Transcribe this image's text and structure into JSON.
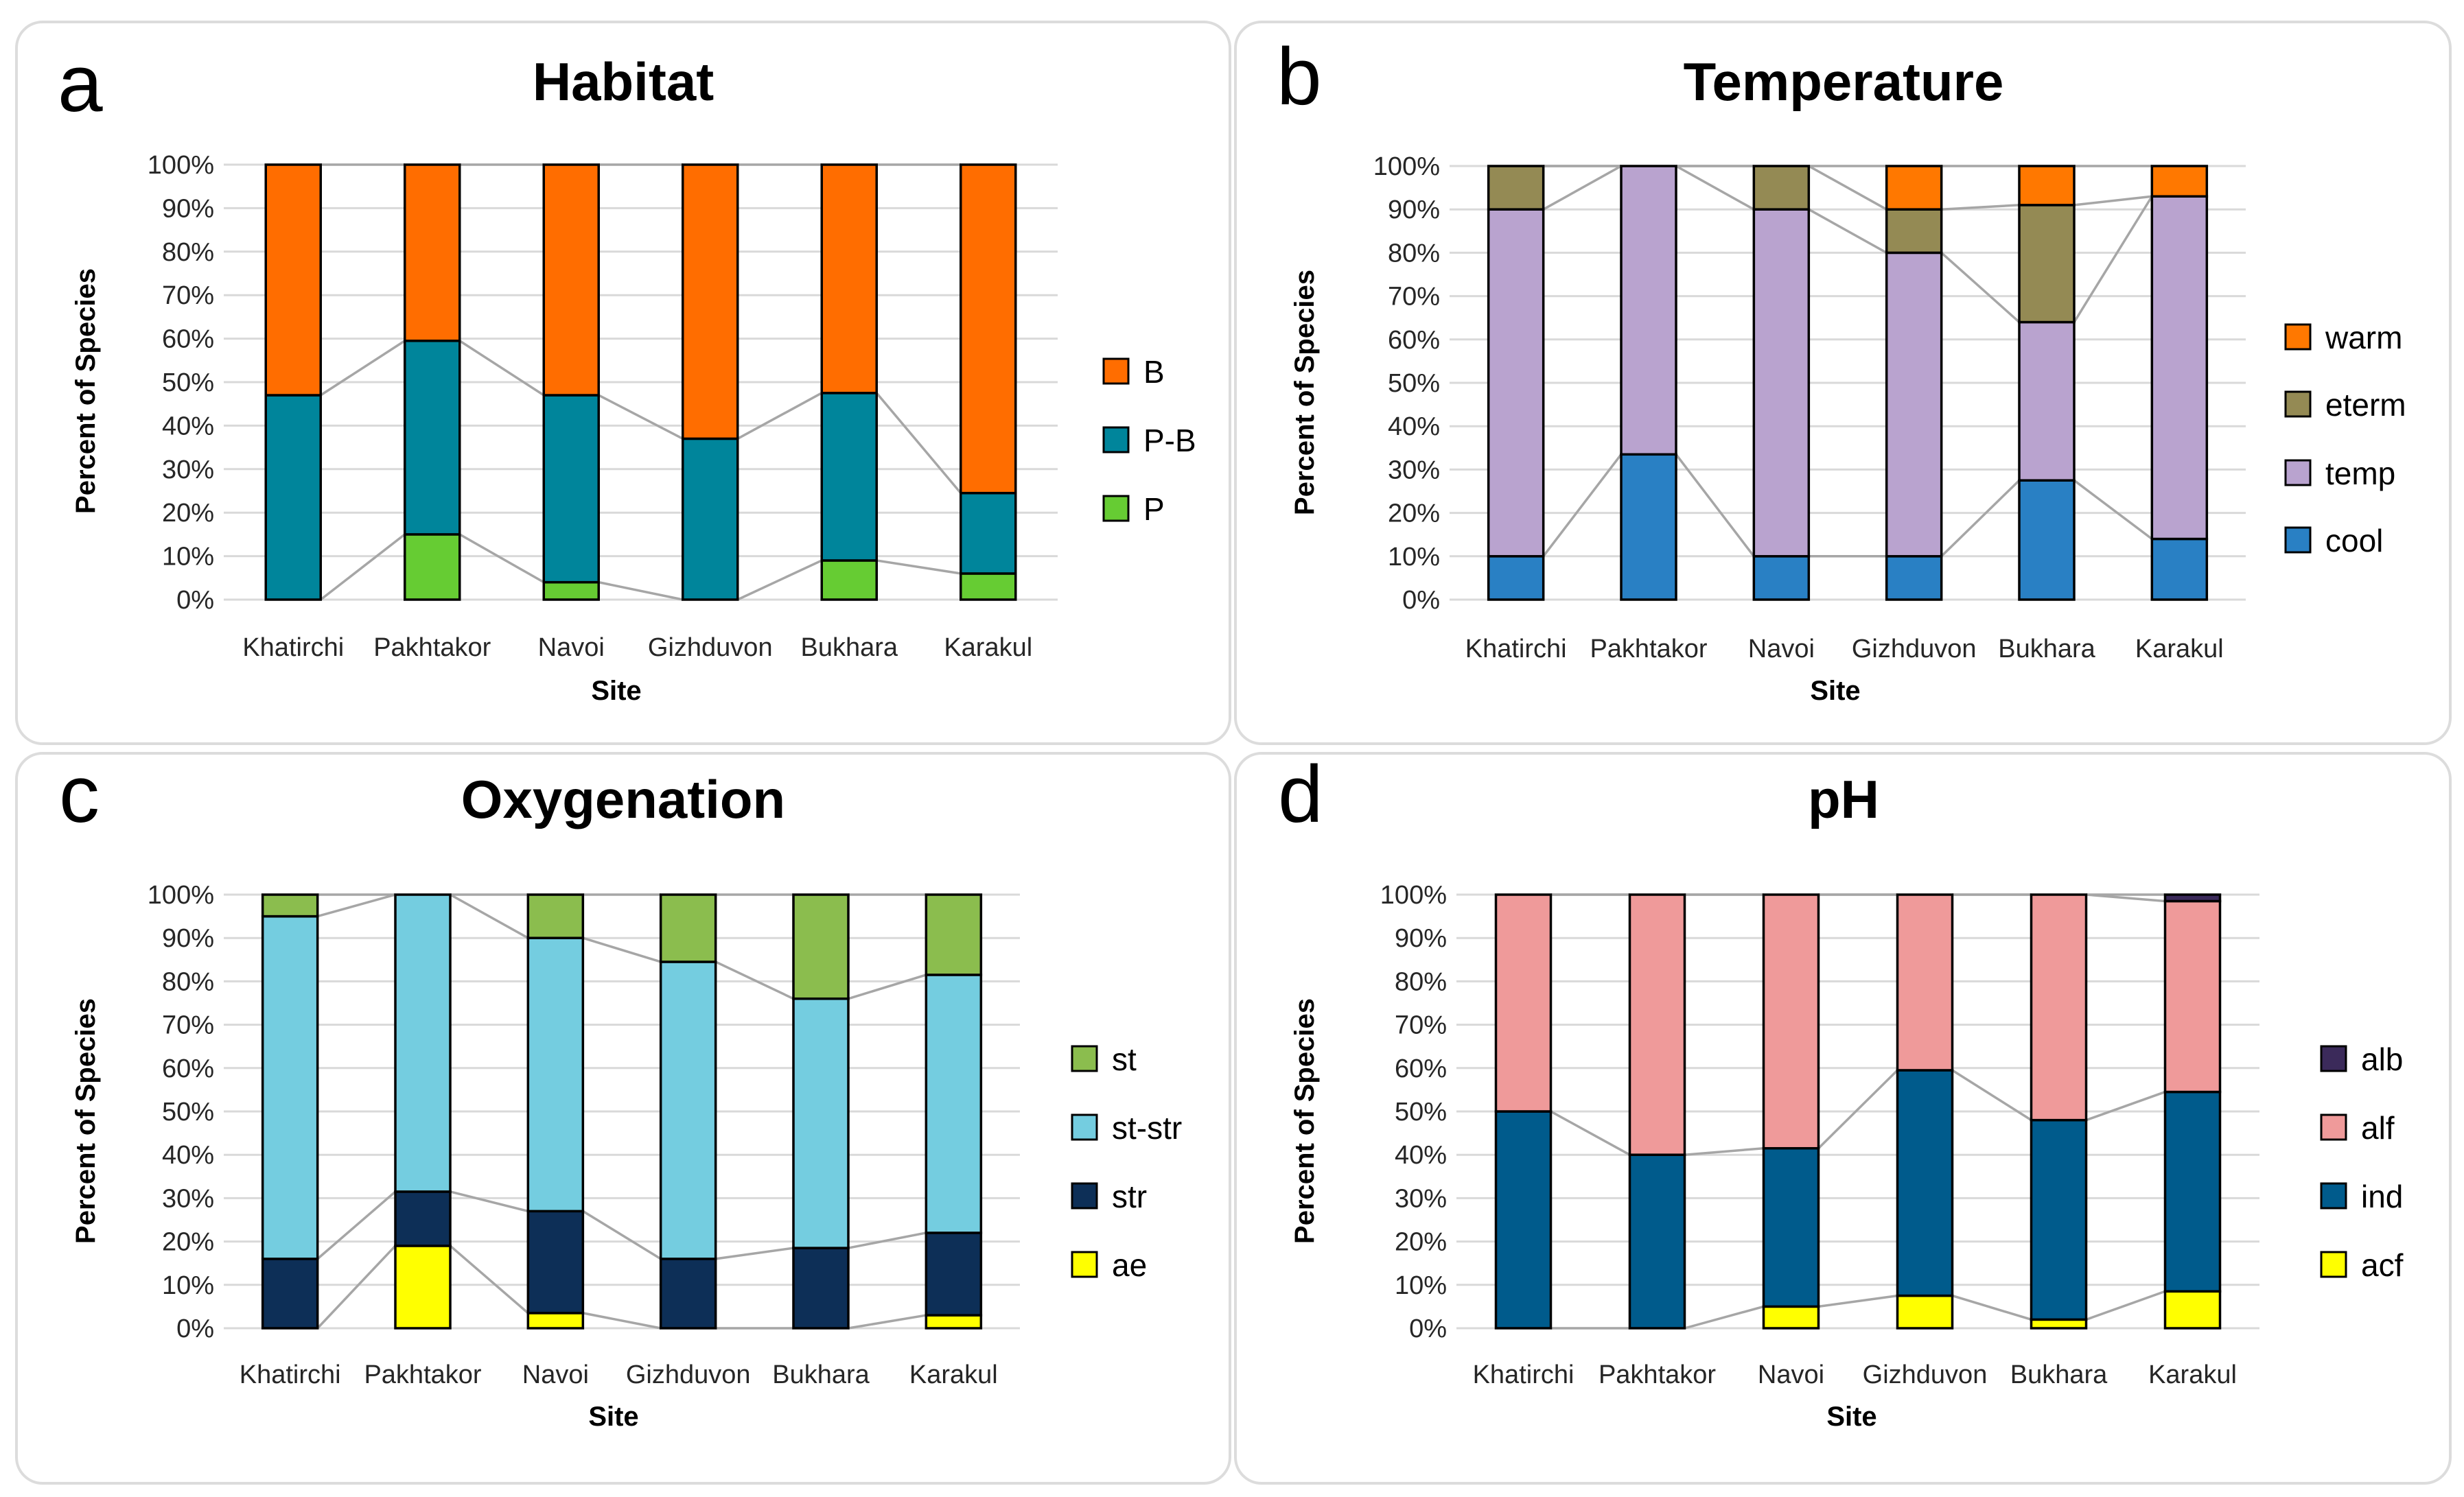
{
  "chart_data": [
    {
      "id": "a",
      "panel_label": "a",
      "type": "bar",
      "stacked": true,
      "title": "Habitat",
      "xlabel": "Site",
      "ylabel": "Percent of Species",
      "ylim": [
        0,
        100
      ],
      "yticks": [
        "0%",
        "10%",
        "20%",
        "30%",
        "40%",
        "50%",
        "60%",
        "70%",
        "80%",
        "90%",
        "100%"
      ],
      "categories": [
        "Khatirchi",
        "Pakhtakor",
        "Navoi",
        "Gizhduvon",
        "Bukhara",
        "Karakul"
      ],
      "series": [
        {
          "name": "P",
          "color": "#66cc33",
          "values": [
            0,
            15,
            4,
            0,
            9,
            6
          ]
        },
        {
          "name": "P-B",
          "color": "#00859b",
          "values": [
            47,
            44.5,
            43,
            37,
            38.5,
            18.5
          ]
        },
        {
          "name": "B",
          "color": "#ff6d00",
          "values": [
            53,
            40.5,
            53,
            63,
            52.5,
            75.5
          ]
        }
      ],
      "legend": [
        "B",
        "P-B",
        "P"
      ]
    },
    {
      "id": "b",
      "panel_label": "b",
      "type": "bar",
      "stacked": true,
      "title": "Temperature",
      "xlabel": "Site",
      "ylabel": "Percent of Species",
      "ylim": [
        0,
        100
      ],
      "yticks": [
        "0%",
        "10%",
        "20%",
        "30%",
        "40%",
        "50%",
        "60%",
        "70%",
        "80%",
        "90%",
        "100%"
      ],
      "categories": [
        "Khatirchi",
        "Pakhtakor",
        "Navoi",
        "Gizhduvon",
        "Bukhara",
        "Karakul"
      ],
      "series": [
        {
          "name": "cool",
          "color": "#2980c4",
          "values": [
            10,
            33.5,
            10,
            10,
            27.5,
            14
          ]
        },
        {
          "name": "temp",
          "color": "#b9a3cf",
          "values": [
            80,
            66.5,
            80,
            70,
            36.5,
            79
          ]
        },
        {
          "name": "eterm",
          "color": "#948a54",
          "values": [
            10,
            0,
            10,
            10,
            27,
            0
          ]
        },
        {
          "name": "warm",
          "color": "#ff7800",
          "values": [
            0,
            0,
            0,
            10,
            9,
            7
          ]
        }
      ],
      "legend": [
        "warm",
        "eterm",
        "temp",
        "cool"
      ]
    },
    {
      "id": "c",
      "panel_label": "c",
      "type": "bar",
      "stacked": true,
      "title": "Oxygenation",
      "xlabel": "Site",
      "ylabel": "Percent of Species",
      "ylim": [
        0,
        100
      ],
      "yticks": [
        "0%",
        "10%",
        "20%",
        "30%",
        "40%",
        "50%",
        "60%",
        "70%",
        "80%",
        "90%",
        "100%"
      ],
      "categories": [
        "Khatirchi",
        "Pakhtakor",
        "Navoi",
        "Gizhduvon",
        "Bukhara",
        "Karakul"
      ],
      "series": [
        {
          "name": "ae",
          "color": "#ffff00",
          "values": [
            0,
            19,
            3.5,
            0,
            0,
            3
          ]
        },
        {
          "name": "str",
          "color": "#0d2f57",
          "values": [
            16,
            12.5,
            23.5,
            16,
            18.5,
            19
          ]
        },
        {
          "name": "st-str",
          "color": "#74cde0",
          "values": [
            79,
            68.5,
            63,
            68.5,
            57.5,
            59.5
          ]
        },
        {
          "name": "st",
          "color": "#8bbd4e",
          "values": [
            5,
            0,
            10,
            15.5,
            24,
            18.5
          ]
        }
      ],
      "legend": [
        "st",
        "st-str",
        "str",
        "ae"
      ]
    },
    {
      "id": "d",
      "panel_label": "d",
      "type": "bar",
      "stacked": true,
      "title": "pH",
      "xlabel": "Site",
      "ylabel": "Percent of Species",
      "ylim": [
        0,
        100
      ],
      "yticks": [
        "0%",
        "10%",
        "20%",
        "30%",
        "40%",
        "50%",
        "60%",
        "70%",
        "80%",
        "90%",
        "100%"
      ],
      "categories": [
        "Khatirchi",
        "Pakhtakor",
        "Navoi",
        "Gizhduvon",
        "Bukhara",
        "Karakul"
      ],
      "series": [
        {
          "name": "acf",
          "color": "#ffff00",
          "values": [
            0,
            0,
            5,
            7.5,
            2,
            8.5
          ]
        },
        {
          "name": "ind",
          "color": "#005b8c",
          "values": [
            50,
            40,
            36.5,
            52,
            46,
            46
          ]
        },
        {
          "name": "alf",
          "color": "#ef9a9a",
          "values": [
            50,
            60,
            58.5,
            40.5,
            52,
            44
          ]
        },
        {
          "name": "alb",
          "color": "#3b2a5a",
          "values": [
            0,
            0,
            0,
            0,
            0,
            1.5
          ]
        }
      ],
      "legend": [
        "alb",
        "alf",
        "ind",
        "acf"
      ]
    }
  ]
}
